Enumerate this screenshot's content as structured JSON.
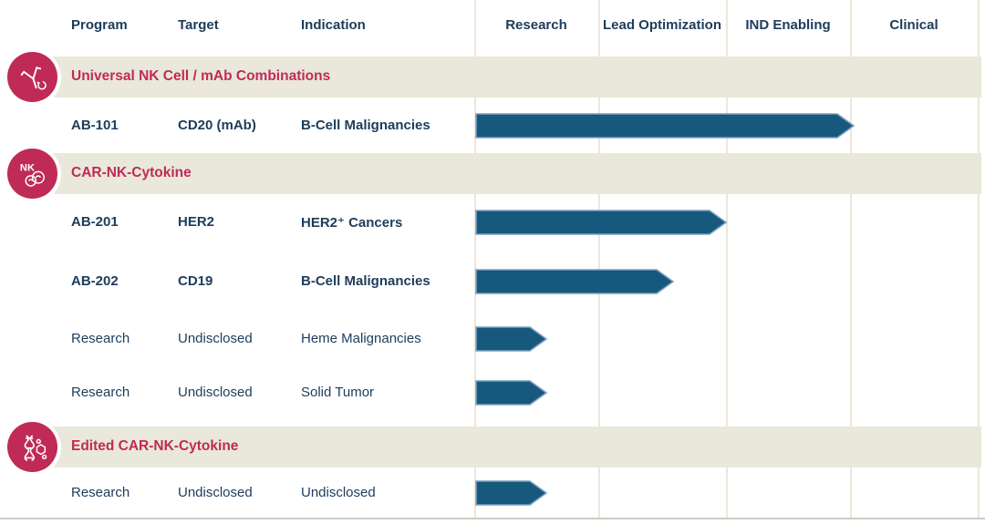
{
  "colors": {
    "navy_text": "#1d3c5b",
    "crimson_accent": "#c02a57",
    "band_beige": "#e9e8da",
    "gridline_beige": "#ebe7db",
    "bar_fill": "#17597c",
    "bar_edge": "#7f9fc2"
  },
  "header": {
    "info_columns": [
      "Program",
      "Target",
      "Indication"
    ],
    "stage_columns": [
      "Research",
      "Lead Optimization",
      "IND Enabling",
      "Clinical"
    ]
  },
  "sections": [
    {
      "title": "Universal NK Cell / mAb Combinations",
      "icon": "antibody-icon",
      "rows": [
        {
          "program": "AB-101",
          "target": "CD20 (mAb)",
          "indication": "B-Cell Malignancies",
          "emphasis": true,
          "stage_extent": 3.02
        }
      ]
    },
    {
      "title": "CAR-NK-Cytokine",
      "icon": "nk-cells-icon",
      "rows": [
        {
          "program": "AB-201",
          "target": "HER2",
          "indication": "HER2⁺ Cancers",
          "emphasis": true,
          "stage_extent": 2.0
        },
        {
          "program": "AB-202",
          "target": "CD19",
          "indication": "B-Cell Malignancies",
          "emphasis": true,
          "stage_extent": 1.58
        },
        {
          "program": "Research",
          "target": "Undisclosed",
          "indication": "Heme Malignancies",
          "emphasis": false,
          "stage_extent": 0.57
        },
        {
          "program": "Research",
          "target": "Undisclosed",
          "indication": "Solid Tumor",
          "emphasis": false,
          "stage_extent": 0.57
        }
      ]
    },
    {
      "title": "Edited CAR-NK-Cytokine",
      "icon": "dna-icon",
      "rows": [
        {
          "program": "Research",
          "target": "Undisclosed",
          "indication": "Undisclosed",
          "emphasis": false,
          "stage_extent": 0.57
        }
      ]
    }
  ],
  "chart_data": {
    "type": "bar",
    "subtype": "pipeline-gantt",
    "stages": [
      "Research",
      "Lead Optimization",
      "IND Enabling",
      "Clinical"
    ],
    "stage_axis_note": "bar extent measured in stage units from start of Research (Research=1, Lead Optimization=2, IND Enabling=3, Clinical=4)",
    "series": [
      {
        "program": "AB-101",
        "section": "Universal NK Cell / mAb Combinations",
        "target": "CD20 (mAb)",
        "indication": "B-Cell Malignancies",
        "extent": 3.02
      },
      {
        "program": "AB-201",
        "section": "CAR-NK-Cytokine",
        "target": "HER2",
        "indication": "HER2⁺ Cancers",
        "extent": 2.0
      },
      {
        "program": "AB-202",
        "section": "CAR-NK-Cytokine",
        "target": "CD19",
        "indication": "B-Cell Malignancies",
        "extent": 1.58
      },
      {
        "program": "Research",
        "section": "CAR-NK-Cytokine",
        "target": "Undisclosed",
        "indication": "Heme Malignancies",
        "extent": 0.57
      },
      {
        "program": "Research",
        "section": "CAR-NK-Cytokine",
        "target": "Undisclosed",
        "indication": "Solid Tumor",
        "extent": 0.57
      },
      {
        "program": "Research",
        "section": "Edited CAR-NK-Cytokine",
        "target": "Undisclosed",
        "indication": "Undisclosed",
        "extent": 0.57
      }
    ],
    "legend": "none",
    "grid": "vertical stage separators only"
  }
}
